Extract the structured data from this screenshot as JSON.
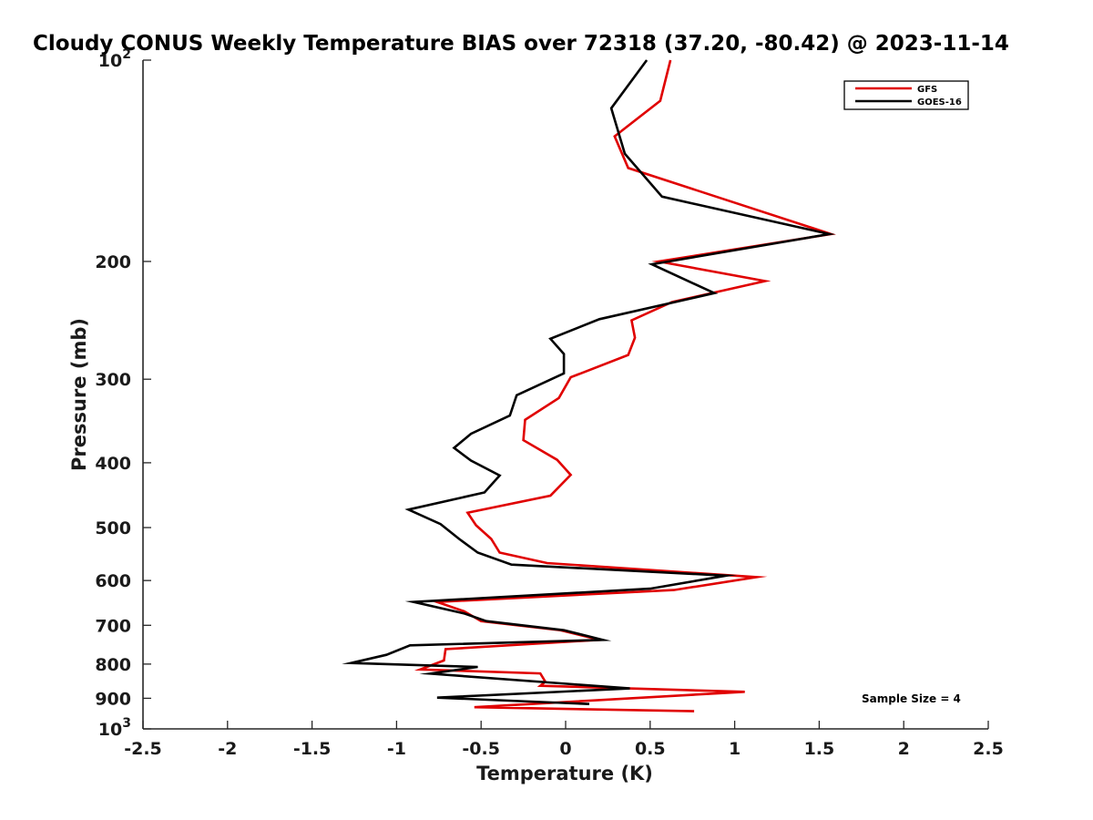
{
  "chart_data": {
    "type": "line",
    "title": "Cloudy CONUS Weekly Temperature BIAS over 72318 (37.20, -80.42) @ 2023-11-14",
    "xlabel": "Temperature (K)",
    "ylabel": "Pressure (mb)",
    "xlim": [
      -2.5,
      2.5
    ],
    "ylim": [
      100,
      1000
    ],
    "yscale": "log",
    "yreversed": true,
    "xticks": [
      -2.5,
      -2,
      -1.5,
      -1,
      -0.5,
      0,
      0.5,
      1,
      1.5,
      2,
      2.5
    ],
    "xtick_labels": [
      "-2.5",
      "-2",
      "-1.5",
      "-1",
      "-0.5",
      "0",
      "0.5",
      "1",
      "1.5",
      "2",
      "2.5"
    ],
    "yticks": [
      200,
      300,
      400,
      500,
      600,
      700,
      800,
      900
    ],
    "ytick_labels": [
      "200",
      "300",
      "400",
      "500",
      "600",
      "700",
      "800",
      "900"
    ],
    "ytick_top": {
      "base": "10",
      "exp": "2"
    },
    "ytick_bottom": {
      "base": "10",
      "exp": "3"
    },
    "grid": false,
    "legend_position": "top-right",
    "annotation": "Sample Size = 4",
    "series": [
      {
        "name": "GFS",
        "color": "#e00000",
        "x": [
          0.62,
          0.56,
          0.29,
          0.37,
          1.57,
          0.55,
          1.18,
          0.63,
          0.39,
          0.41,
          0.37,
          0.03,
          -0.04,
          -0.24,
          -0.25,
          -0.05,
          0.03,
          -0.09,
          -0.58,
          -0.53,
          -0.44,
          -0.39,
          -0.11,
          1.13,
          0.64,
          -0.76,
          -0.6,
          -0.5,
          -0.03,
          0.2,
          -0.71,
          -0.72,
          -0.86,
          -0.15,
          -0.12,
          -0.15,
          1.06,
          -0.54,
          0.76
        ],
        "y": [
          100,
          115,
          130,
          145,
          182,
          200,
          214,
          230,
          245,
          260,
          276,
          298,
          320,
          345,
          370,
          396,
          417,
          448,
          475,
          496,
          520,
          545,
          565,
          593,
          620,
          646,
          667,
          690,
          712,
          736,
          760,
          790,
          815,
          826,
          850,
          862,
          880,
          928,
          941
        ]
      },
      {
        "name": "GOES-16",
        "color": "#000000",
        "x": [
          0.48,
          0.27,
          0.35,
          0.57,
          1.56,
          0.51,
          0.88,
          0.2,
          -0.09,
          -0.01,
          -0.01,
          -0.29,
          -0.33,
          -0.56,
          -0.66,
          -0.56,
          -0.39,
          -0.48,
          -0.93,
          -0.74,
          -0.63,
          -0.52,
          -0.32,
          0.95,
          0.5,
          -0.9,
          -0.6,
          -0.47,
          -0.01,
          0.22,
          -0.92,
          -1.06,
          -1.27,
          -0.52,
          -0.8,
          0.38,
          -0.76,
          0.14
        ],
        "y": [
          100,
          118,
          138,
          160,
          182,
          202,
          223,
          244,
          261,
          275,
          294,
          317,
          340,
          362,
          380,
          397,
          418,
          443,
          470,
          494,
          520,
          545,
          568,
          590,
          617,
          646,
          672,
          690,
          712,
          736,
          750,
          775,
          797,
          808,
          827,
          870,
          898,
          918
        ]
      }
    ]
  }
}
